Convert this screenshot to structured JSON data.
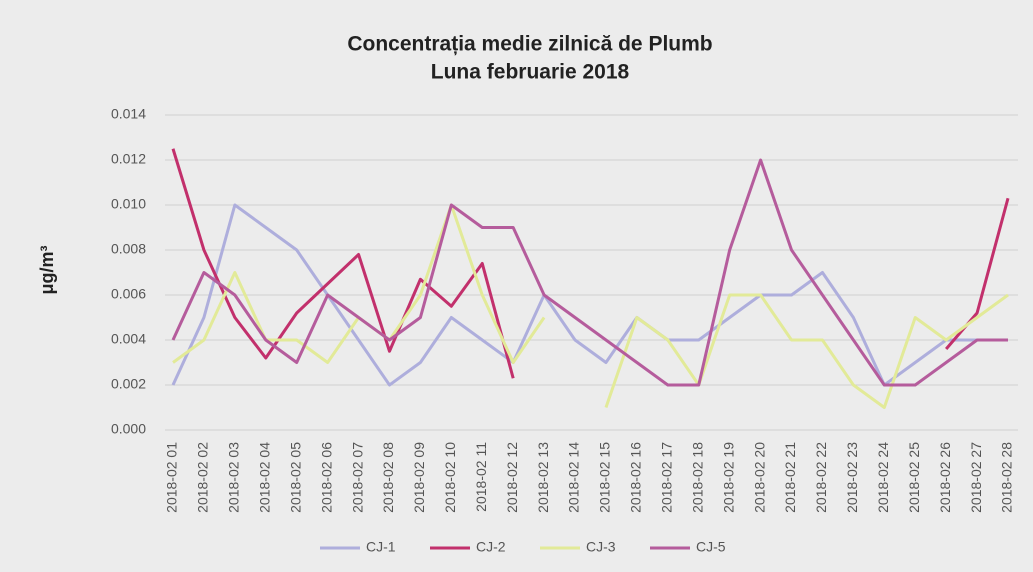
{
  "chart_data": {
    "type": "line",
    "title": "Concentrația medie zilnică de Plumb",
    "subtitle": "Luna februarie 2018",
    "y_label": "μg/m³",
    "categories": [
      "2018-02 01",
      "2018-02 02",
      "2018-02 03",
      "2018-02 04",
      "2018-02 05",
      "2018-02 06",
      "2018-02 07",
      "2018-02 08",
      "2018-02 09",
      "2018-02 10",
      "2018-02 11",
      "2018-02 12",
      "2018-02 13",
      "2018-02 14",
      "2018-02 15",
      "2018-02 16",
      "2018-02 17",
      "2018-02 18",
      "2018-02 19",
      "2018-02 20",
      "2018-02 21",
      "2018-02 22",
      "2018-02 23",
      "2018-02 24",
      "2018-02 25",
      "2018-02 26",
      "2018-02 27",
      "2018-02 28"
    ],
    "series": [
      {
        "name": "CJ-1",
        "color": "#aeaedc",
        "values": [
          0.002,
          0.005,
          0.01,
          0.009,
          0.008,
          0.006,
          0.004,
          0.002,
          0.003,
          0.005,
          0.004,
          0.003,
          0.006,
          0.004,
          0.003,
          0.005,
          0.004,
          0.004,
          0.005,
          0.006,
          0.006,
          0.007,
          0.005,
          0.002,
          0.003,
          0.004,
          0.004,
          0.004
        ]
      },
      {
        "name": "CJ-2",
        "color": "#c2306c",
        "values": [
          0.0125,
          0.008,
          0.005,
          0.0032,
          0.0052,
          0.0065,
          0.0078,
          0.0035,
          0.0067,
          0.0055,
          0.0074,
          0.0023,
          null,
          null,
          null,
          null,
          null,
          null,
          null,
          null,
          null,
          null,
          null,
          null,
          null,
          0.0036,
          0.0052,
          0.0103
        ]
      },
      {
        "name": "CJ-3",
        "color": "#e2ea98",
        "values": [
          0.003,
          0.004,
          0.007,
          0.004,
          0.004,
          0.003,
          0.005,
          0.004,
          0.006,
          0.01,
          0.006,
          0.003,
          0.005,
          null,
          0.001,
          0.005,
          0.004,
          0.002,
          0.006,
          0.006,
          0.004,
          0.004,
          0.002,
          0.001,
          0.005,
          0.004,
          0.005,
          0.006
        ]
      },
      {
        "name": "CJ-5",
        "color": "#b55c9c",
        "values": [
          0.004,
          0.007,
          0.006,
          0.004,
          0.003,
          0.006,
          0.005,
          0.004,
          0.005,
          0.01,
          0.009,
          0.009,
          0.006,
          0.005,
          0.004,
          0.003,
          0.002,
          0.002,
          0.008,
          0.012,
          0.008,
          0.006,
          0.004,
          0.002,
          0.002,
          0.003,
          0.004,
          0.004
        ]
      }
    ],
    "ylim": [
      0,
      0.014
    ],
    "yticks": [
      {
        "value": 0,
        "label": "0.000"
      },
      0.002,
      0.004,
      0.006,
      0.008,
      {
        "value": 0.01,
        "label": "0.010"
      },
      0.012,
      0.014
    ],
    "grid": true
  }
}
